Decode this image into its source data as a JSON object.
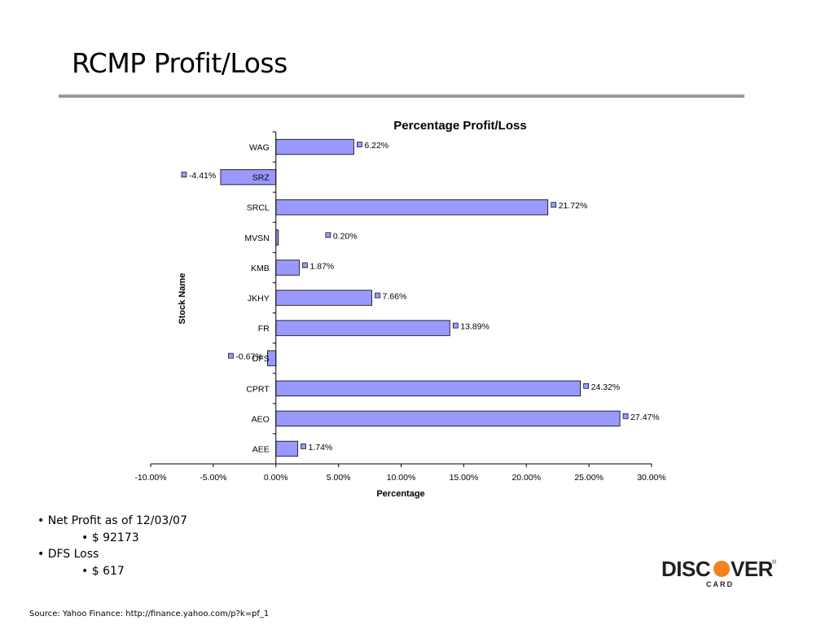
{
  "slide": {
    "title": "RCMP Profit/Loss",
    "bullets": [
      {
        "text": "• Net Profit as of 12/03/07",
        "level": 1
      },
      {
        "text": "•  $ 92173",
        "level": 2
      },
      {
        "text": "• DFS Loss",
        "level": 1
      },
      {
        "text": "• $ 617",
        "level": 2
      }
    ],
    "source": "Source: Yahoo Finance: http://finance.yahoo.com/p?k=pf_1",
    "logo": {
      "word_left": "DISC",
      "word_right": "VER",
      "registered": "®",
      "sub": "CARD"
    }
  },
  "chart_data": {
    "type": "bar",
    "orientation": "horizontal",
    "title": "Percentage Profit/Loss",
    "xlabel": "Percentage",
    "ylabel": "Stock Name",
    "categories": [
      "WAG",
      "SRZ",
      "SRCL",
      "MVSN",
      "KMB",
      "JKHY",
      "FR",
      "DFS",
      "CPRT",
      "AEO",
      "AEE"
    ],
    "values": [
      6.22,
      -4.41,
      21.72,
      0.2,
      1.87,
      7.66,
      13.89,
      -0.67,
      24.32,
      27.47,
      1.74
    ],
    "data_labels": [
      "6.22%",
      "-4.41%",
      "21.72%",
      "0.20%",
      "1.87%",
      "7.66%",
      "13.89%",
      "-0.67%",
      "24.32%",
      "27.47%",
      "1.74%"
    ],
    "xlim": [
      -10,
      30
    ],
    "xticks": [
      -10,
      -5,
      0,
      5,
      10,
      15,
      20,
      25,
      30
    ],
    "xtick_labels": [
      "-10.00%",
      "-5.00%",
      "0.00%",
      "5.00%",
      "10.00%",
      "15.00%",
      "20.00%",
      "25.00%",
      "30.00%"
    ],
    "grid": false,
    "legend": "none",
    "colors": {
      "bar_fill": "#9999ff",
      "bar_stroke": "#000000"
    }
  }
}
